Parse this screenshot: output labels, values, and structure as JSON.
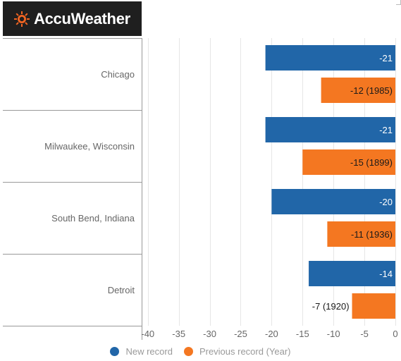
{
  "brand": {
    "name": "AccuWeather",
    "color": "#f26522"
  },
  "chart_data": {
    "type": "bar",
    "orientation": "horizontal",
    "categories": [
      "Chicago",
      "Milwaukee, Wisconsin",
      "South Bend, Indiana",
      "Detroit"
    ],
    "series": [
      {
        "name": "New record",
        "color": "#2166a8",
        "values": [
          -21,
          -21,
          -20,
          -14
        ],
        "labels": [
          "-21",
          "-21",
          "-20",
          "-14"
        ]
      },
      {
        "name": "Previous record (Year)",
        "color": "#f47721",
        "values": [
          -12,
          -15,
          -11,
          -7
        ],
        "labels": [
          "-12 (1985)",
          "-15 (1899)",
          "-11 (1936)",
          "-7 (1920)"
        ]
      }
    ],
    "xlim": [
      -41,
      0
    ],
    "xticks": [
      "-40",
      "-35",
      "-30",
      "-25",
      "-20",
      "-15",
      "-10",
      "-5",
      "0"
    ],
    "xtick_values": [
      -40,
      -35,
      -30,
      -25,
      -20,
      -15,
      -10,
      -5,
      0
    ],
    "grid": true,
    "legend": "bottom"
  }
}
